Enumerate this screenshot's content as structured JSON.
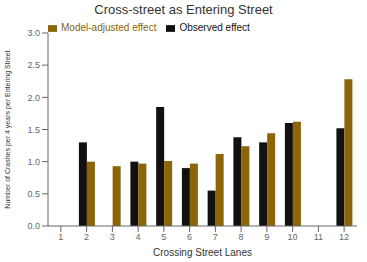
{
  "chart_data": {
    "type": "bar",
    "title": "Cross-street as Entering Street",
    "xlabel": "Crossing Street Lanes",
    "ylabel": "Number of Crashes per 4 years per Entering Street",
    "categories": [
      1,
      2,
      3,
      4,
      5,
      6,
      7,
      8,
      9,
      10,
      11,
      12
    ],
    "series": [
      {
        "name": "Observed effect",
        "color": "#111111",
        "values": [
          0,
          1.3,
          0,
          1.0,
          1.85,
          0.9,
          0.55,
          1.38,
          1.3,
          1.6,
          0,
          1.52
        ]
      },
      {
        "name": "Model-adjusted effect",
        "color": "#8B6508",
        "values": [
          0,
          1.0,
          0.93,
          0.97,
          1.01,
          0.97,
          1.12,
          1.24,
          1.44,
          1.62,
          0,
          2.28
        ]
      }
    ],
    "ylim": [
      0,
      3.0
    ],
    "yticks": [
      {
        "value": 0,
        "label": "0.0"
      },
      0.5,
      {
        "value": 1,
        "label": "1.0"
      },
      1.5,
      {
        "value": 2,
        "label": "2.0"
      },
      2.5,
      {
        "value": 3,
        "label": "3.0"
      }
    ],
    "grid": false,
    "legend": "upper left"
  }
}
